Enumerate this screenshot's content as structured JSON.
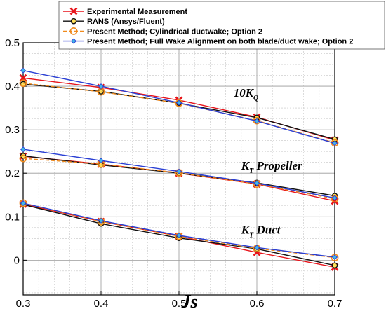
{
  "chart_data": {
    "type": "line",
    "title": "",
    "xlabel": "Js",
    "ylabel": "",
    "xlim": [
      0.3,
      0.7
    ],
    "ylim": [
      -0.08,
      0.5
    ],
    "xticks": [
      0.3,
      0.4,
      0.5,
      0.6,
      0.7
    ],
    "yticks": [
      0,
      0.1,
      0.2,
      0.3,
      0.4,
      0.5
    ],
    "grid": true,
    "legend_position": "top",
    "x": [
      0.3,
      0.4,
      0.5,
      0.6,
      0.7
    ],
    "series": [
      {
        "name": "Experimental Measurement",
        "color": "#e8141b",
        "marker": "x",
        "dash": "solid",
        "groups": {
          "kq": [
            0.419,
            0.397,
            0.368,
            0.329,
            0.276
          ],
          "kt_prop": [
            0.239,
            0.221,
            0.2,
            0.175,
            0.136
          ],
          "kt_duct": [
            0.129,
            0.089,
            0.055,
            0.018,
            -0.016
          ]
        }
      },
      {
        "name": "RANS (Ansys/Fluent)",
        "color": "#111111",
        "marker": "circle",
        "dash": "solid",
        "groups": {
          "kq": [
            0.405,
            0.388,
            0.361,
            0.328,
            0.278
          ],
          "kt_prop": [
            0.24,
            0.219,
            0.2,
            0.178,
            0.148
          ],
          "kt_duct": [
            0.128,
            0.084,
            0.051,
            0.026,
            -0.012
          ]
        }
      },
      {
        "name": "Present Method; Cylindrical ductwake; Option 2",
        "color": "#f08a1c",
        "marker": "circle-open",
        "dash": "dashed",
        "groups": {
          "kq": [
            0.407,
            0.387,
            0.361,
            0.321,
            0.27
          ],
          "kt_prop": [
            0.234,
            0.221,
            0.201,
            0.175,
            0.141
          ],
          "kt_duct": [
            0.131,
            0.089,
            0.055,
            0.027,
            0.006
          ]
        }
      },
      {
        "name": "Present Method; Full Wake Alignment on both blade/duct wake; Option 2",
        "color": "#2a3fd4",
        "marker": "diamond",
        "dash": "solid",
        "groups": {
          "kq": [
            0.436,
            0.4,
            0.362,
            0.32,
            0.269
          ],
          "kt_prop": [
            0.255,
            0.229,
            0.204,
            0.177,
            0.143
          ],
          "kt_duct": [
            0.131,
            0.091,
            0.057,
            0.029,
            0.007
          ]
        }
      }
    ],
    "annotations": [
      {
        "text": "10K",
        "sub": "Q",
        "x": 0.57,
        "y": 0.376
      },
      {
        "text": "K",
        "sub": "T",
        "tail": " Propeller",
        "x": 0.58,
        "y": 0.208
      },
      {
        "text": "K",
        "sub": "T",
        "tail": " Duct",
        "x": 0.58,
        "y": 0.061
      }
    ]
  }
}
